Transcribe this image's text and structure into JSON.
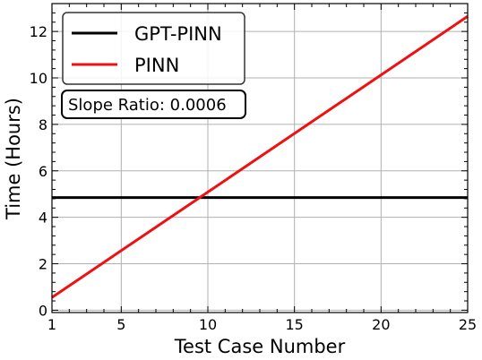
{
  "chart_data": {
    "type": "line",
    "title": "",
    "xlabel": "Test Case Number",
    "ylabel": "Time (Hours)",
    "xlim": [
      1,
      25
    ],
    "ylim": [
      -0.1,
      13.2
    ],
    "xticks": [
      1,
      5,
      10,
      15,
      20,
      25
    ],
    "yticks": [
      0,
      2,
      4,
      6,
      8,
      10,
      12
    ],
    "grid": true,
    "legend_position": "top-left",
    "series": [
      {
        "name": "GPT-PINN",
        "color": "#000000",
        "x": [
          1,
          25
        ],
        "y": [
          4.85,
          4.85
        ]
      },
      {
        "name": "PINN",
        "color": "#ee1111",
        "x": [
          1,
          25
        ],
        "y": [
          0.55,
          12.65
        ]
      }
    ],
    "annotation": "Slope Ratio: 0.0006"
  }
}
